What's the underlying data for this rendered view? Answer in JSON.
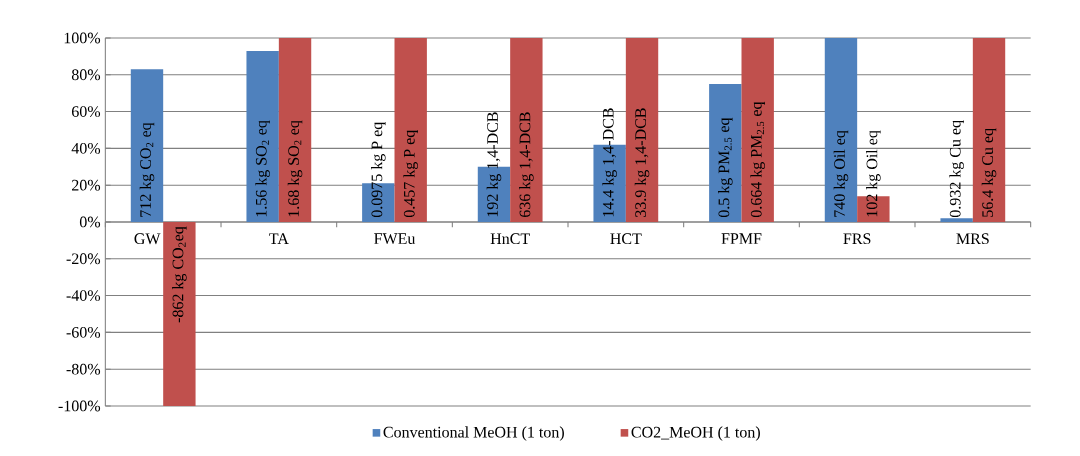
{
  "chart_data": {
    "type": "bar",
    "categories": [
      "GW",
      "TA",
      "FWEu",
      "HnCT",
      "HCT",
      "FPMF",
      "FRS",
      "MRS"
    ],
    "series": [
      {
        "name": "Conventional MeOH (1 ton)",
        "color": "#4f81bd",
        "values": [
          83,
          93,
          21,
          30,
          42,
          75,
          100,
          2
        ]
      },
      {
        "name": "CO2_MeOH (1 ton)",
        "color": "#c0504d",
        "values": [
          -100,
          100,
          100,
          100,
          100,
          100,
          14,
          100
        ]
      }
    ],
    "annotations": [
      "712 kg CO$_{2}$ eq",
      "1.56 kg SO$_{2}$ eq",
      "0.0975 kg P eq",
      "192 kg 1,4-DCB",
      "14.4 kg 1,4-DCB",
      "0.5 kg PM$_{2.5}$ eq",
      "740 kg Oil eq",
      "0.932 kg Cu eq",
      "-862 kg CO$_{2}$eq",
      "1.68 kg SO$_{2}$ eq",
      "0.457 kg P eq",
      "636 kg 1,4-DCB",
      "33.9 kg 1,4-DCB",
      "0.664 kg PM$_{2.5}$ eq",
      "102 kg Oil eq",
      "56.4 kg Cu eq"
    ],
    "ylim": [
      -100,
      100
    ],
    "yticks": [
      {
        "value": -100,
        "label": "-100%"
      },
      {
        "value": -80,
        "label": "-80%"
      },
      {
        "value": -60,
        "label": "-60%"
      },
      {
        "value": -40,
        "label": "-40%"
      },
      {
        "value": -20,
        "label": "-20%"
      },
      {
        "value": 0,
        "label": "0%"
      },
      {
        "value": 20,
        "label": "20%"
      },
      {
        "value": 40,
        "label": "40%"
      },
      {
        "value": 60,
        "label": "60%"
      },
      {
        "value": 80,
        "label": "80%"
      },
      {
        "value": 100,
        "label": "100%"
      }
    ],
    "grid": "y",
    "legend": "bottom"
  }
}
